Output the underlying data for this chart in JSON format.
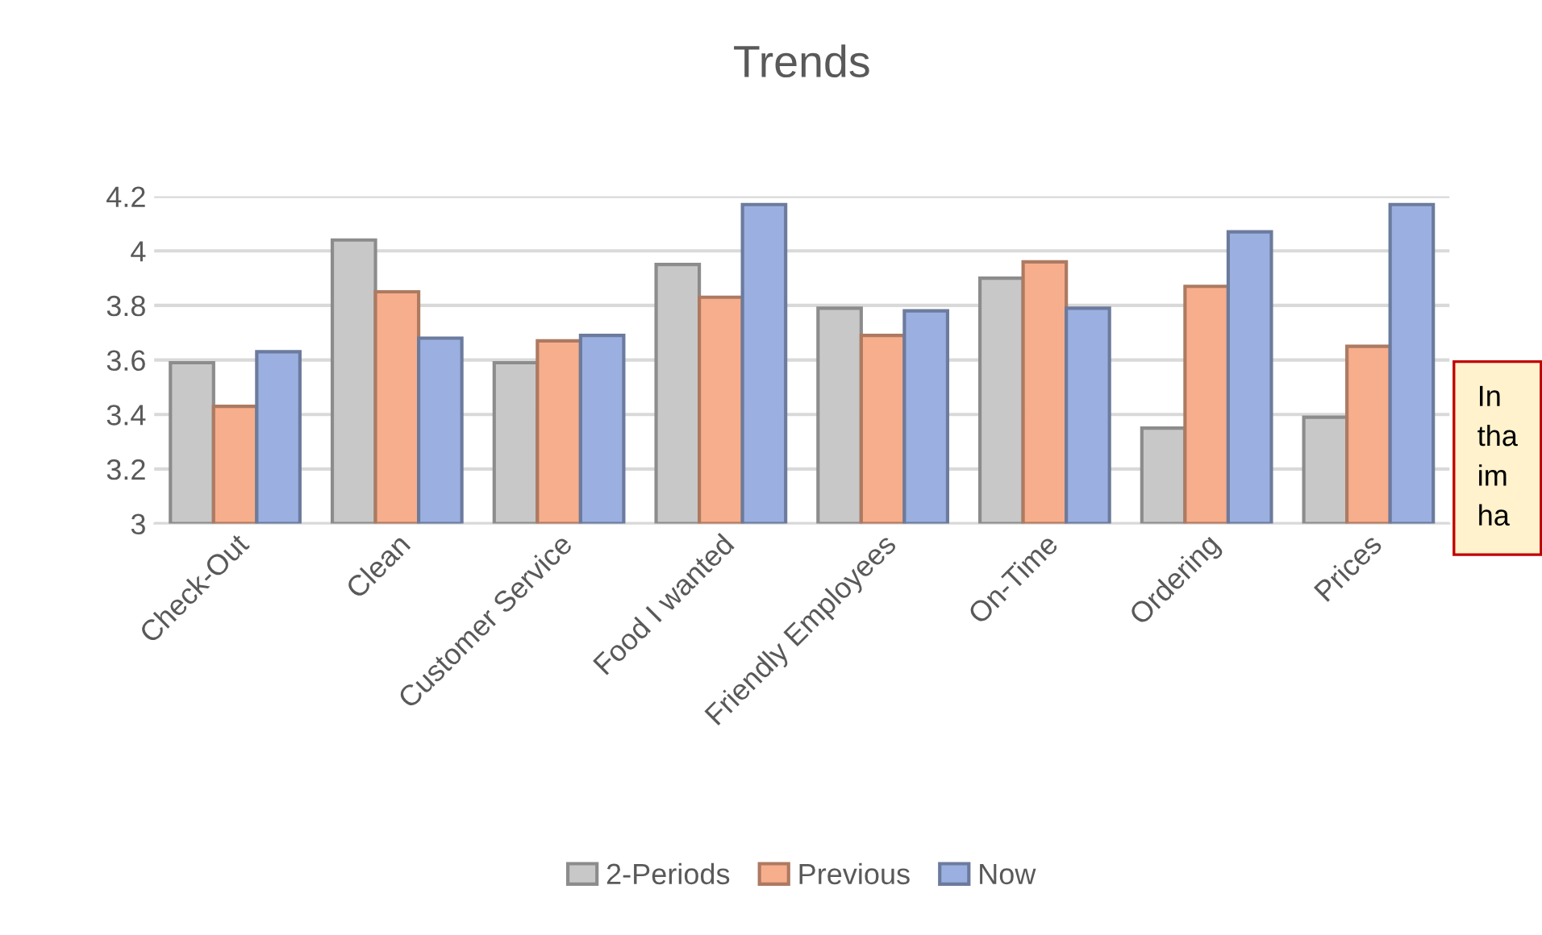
{
  "chart_data": {
    "type": "bar",
    "title": "Trends",
    "categories": [
      "Check-Out",
      "Clean",
      "Customer Service",
      "Food I wanted",
      "Friendly Employees",
      "On-Time",
      "Ordering",
      "Prices"
    ],
    "series": [
      {
        "name": "2-Periods",
        "color": "#c8c8c8",
        "values": [
          3.59,
          4.04,
          3.59,
          3.95,
          3.79,
          3.9,
          3.35,
          3.39
        ]
      },
      {
        "name": "Previous",
        "color": "#f7ae8c",
        "values": [
          3.43,
          3.85,
          3.67,
          3.83,
          3.69,
          3.96,
          3.87,
          3.65
        ]
      },
      {
        "name": "Now",
        "color": "#9bb0e0",
        "values": [
          3.63,
          3.68,
          3.69,
          4.17,
          3.78,
          3.79,
          4.07,
          4.17
        ]
      }
    ],
    "ylim": [
      3,
      4.2
    ],
    "yticks": [
      3,
      3.2,
      3.4,
      3.6,
      3.8,
      4,
      4.2
    ],
    "grid": "y",
    "legend": "bottom",
    "annotations": [
      "In\ntha\nim\nha"
    ]
  }
}
